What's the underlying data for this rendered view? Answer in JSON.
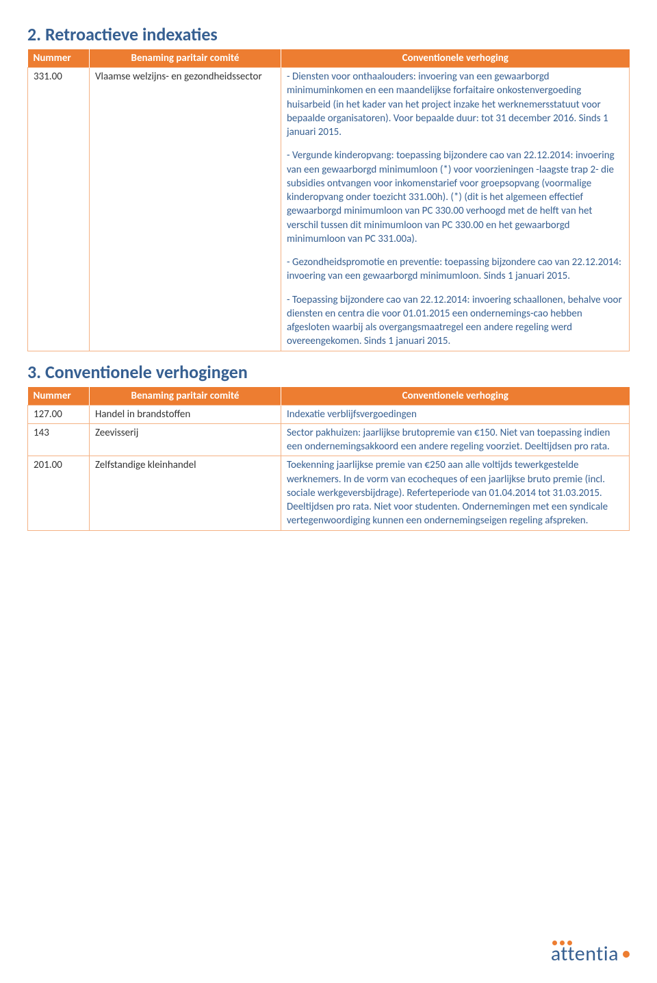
{
  "colors": {
    "heading": "#365f91",
    "header_bg": "#ed7d31",
    "header_text": "#ffffff",
    "border": "#f4b183",
    "body_blue": "#365f91",
    "body_black": "#333333",
    "background": "#ffffff"
  },
  "section2": {
    "title": "2. Retroactieve indexaties",
    "headers": [
      "Nummer",
      "Benaming paritair comité",
      "Conventionele verhoging"
    ],
    "row": {
      "num": "331.00",
      "name": "Vlaamse welzijns- en gezondheidssector",
      "p1": "- Diensten voor onthaalouders: invoering van een gewaarborgd minimuminkomen en een maandelijkse forfaitaire onkostenvergoeding huisarbeid (in het kader van het project inzake het werknemersstatuut voor bepaalde organisatoren). Voor bepaalde duur: tot 31 december 2016. Sinds 1 januari 2015.",
      "p2": "- Vergunde kinderopvang: toepassing bijzondere cao van 22.12.2014: invoering van een gewaarborgd minimumloon (*) voor voorzieningen -laagste trap 2- die subsidies ontvangen voor inkomenstarief voor groepsopvang (voormalige kinderopvang onder toezicht 331.00h). (*) (dit is het algemeen effectief gewaarborgd minimumloon van PC 330.00 verhoogd met de helft van het verschil tussen dit minimumloon van PC 330.00 en het gewaarborgd minimumloon van PC 331.00a).",
      "p3": "- Gezondheidspromotie en preventie: toepassing bijzondere cao van 22.12.2014: invoering van een gewaarborgd minimumloon. Sinds 1 januari 2015.",
      "p4": "- Toepassing bijzondere cao van 22.12.2014: invoering schaallonen, behalve voor diensten en centra die voor 01.01.2015 een ondernemings-cao hebben afgesloten waarbij als overgangsmaatregel een andere regeling werd overeengekomen. Sinds 1 januari 2015."
    }
  },
  "section3": {
    "title": "3. Conventionele verhogingen",
    "headers": [
      "Nummer",
      "Benaming paritair comité",
      "Conventionele verhoging"
    ],
    "rows": [
      {
        "num": "127.00",
        "name": "Handel in brandstoffen",
        "desc": "Indexatie verblijfsvergoedingen"
      },
      {
        "num": "143",
        "name": "Zeevisserij",
        "desc": "Sector pakhuizen: jaarlijkse brutopremie van €150. Niet van toepassing indien een ondernemingsakkoord een andere regeling voorziet. Deeltijdsen pro rata."
      },
      {
        "num": "201.00",
        "name": "Zelfstandige kleinhandel",
        "desc": "Toekenning jaarlijkse premie van €250  aan alle voltijds tewerkgestelde werknemers. In de vorm van ecocheques of een jaarlijkse bruto premie (incl. sociale werkgeversbijdrage). Referteperiode van 01.04.2014 tot 31.03.2015. Deeltijdsen pro rata. Niet voor studenten. Ondernemingen met een syndicale vertegenwoordiging kunnen een ondernemingseigen regeling afspreken."
      }
    ]
  },
  "logo_text": "attentia"
}
